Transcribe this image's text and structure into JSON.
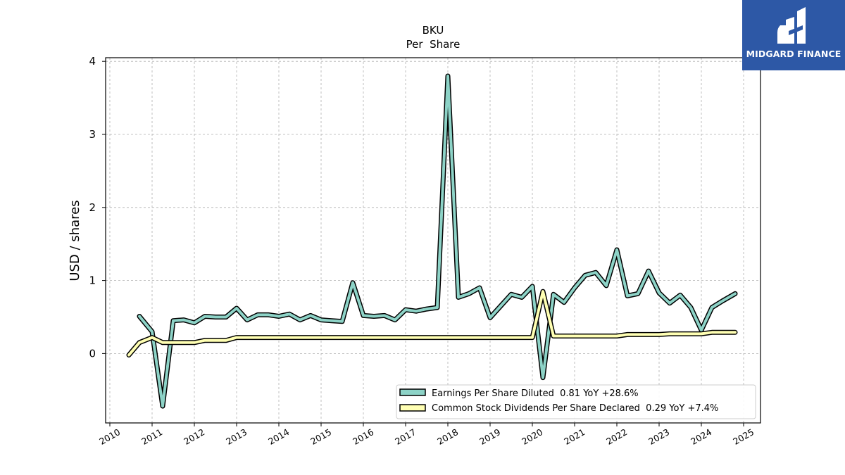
{
  "brand": {
    "name": "MIDGARD FINANCE",
    "bg": "#2d58a6"
  },
  "chart_data": {
    "type": "line",
    "title": "BKU",
    "subtitle": "Per  Share",
    "xlabel": "",
    "ylabel": "USD / shares",
    "xlim": [
      2009.9,
      2025.4
    ],
    "ylim": [
      -0.95,
      4.05
    ],
    "x_ticks": [
      "2010",
      "2011",
      "2012",
      "2013",
      "2014",
      "2015",
      "2016",
      "2017",
      "2018",
      "2019",
      "2020",
      "2021",
      "2022",
      "2023",
      "2024",
      "2025"
    ],
    "y_ticks": [
      "0",
      "1",
      "2",
      "3",
      "4"
    ],
    "grid": true,
    "legend_position": "lower-right",
    "series": [
      {
        "name": "Earnings Per Share Diluted  0.81 YoY +28.6%",
        "color": "#8dd3c7",
        "points": [
          [
            2010.7,
            0.51
          ],
          [
            2011.0,
            0.3
          ],
          [
            2011.25,
            -0.72
          ],
          [
            2011.5,
            0.45
          ],
          [
            2011.75,
            0.46
          ],
          [
            2012.0,
            0.42
          ],
          [
            2012.25,
            0.51
          ],
          [
            2012.5,
            0.5
          ],
          [
            2012.75,
            0.5
          ],
          [
            2013.0,
            0.62
          ],
          [
            2013.25,
            0.46
          ],
          [
            2013.5,
            0.53
          ],
          [
            2013.75,
            0.53
          ],
          [
            2014.0,
            0.51
          ],
          [
            2014.25,
            0.54
          ],
          [
            2014.5,
            0.46
          ],
          [
            2014.75,
            0.52
          ],
          [
            2015.0,
            0.46
          ],
          [
            2015.25,
            0.45
          ],
          [
            2015.5,
            0.44
          ],
          [
            2015.75,
            0.97
          ],
          [
            2016.0,
            0.52
          ],
          [
            2016.25,
            0.51
          ],
          [
            2016.5,
            0.52
          ],
          [
            2016.75,
            0.46
          ],
          [
            2017.0,
            0.6
          ],
          [
            2017.25,
            0.58
          ],
          [
            2017.5,
            0.61
          ],
          [
            2017.75,
            0.63
          ],
          [
            2018.0,
            3.8
          ],
          [
            2018.25,
            0.77
          ],
          [
            2018.5,
            0.82
          ],
          [
            2018.75,
            0.9
          ],
          [
            2019.0,
            0.49
          ],
          [
            2019.25,
            0.65
          ],
          [
            2019.5,
            0.81
          ],
          [
            2019.75,
            0.77
          ],
          [
            2020.0,
            0.92
          ],
          [
            2020.25,
            -0.33
          ],
          [
            2020.5,
            0.81
          ],
          [
            2020.75,
            0.7
          ],
          [
            2021.0,
            0.9
          ],
          [
            2021.25,
            1.07
          ],
          [
            2021.5,
            1.11
          ],
          [
            2021.75,
            0.93
          ],
          [
            2022.0,
            1.42
          ],
          [
            2022.25,
            0.79
          ],
          [
            2022.5,
            0.82
          ],
          [
            2022.75,
            1.13
          ],
          [
            2023.0,
            0.83
          ],
          [
            2023.25,
            0.69
          ],
          [
            2023.5,
            0.8
          ],
          [
            2023.75,
            0.63
          ],
          [
            2024.0,
            0.32
          ],
          [
            2024.25,
            0.63
          ],
          [
            2024.5,
            0.72
          ],
          [
            2024.8,
            0.82
          ]
        ]
      },
      {
        "name": "Common Stock Dividends Per Share Declared  0.29 YoY +7.4%",
        "color": "#ffffb3",
        "points": [
          [
            2010.45,
            -0.02
          ],
          [
            2010.7,
            0.15
          ],
          [
            2011.0,
            0.22
          ],
          [
            2011.25,
            0.15
          ],
          [
            2011.5,
            0.15
          ],
          [
            2011.75,
            0.15
          ],
          [
            2012.0,
            0.15
          ],
          [
            2012.25,
            0.18
          ],
          [
            2012.5,
            0.18
          ],
          [
            2012.75,
            0.18
          ],
          [
            2013.0,
            0.22
          ],
          [
            2013.25,
            0.22
          ],
          [
            2013.5,
            0.22
          ],
          [
            2013.75,
            0.22
          ],
          [
            2014.0,
            0.22
          ],
          [
            2014.25,
            0.22
          ],
          [
            2014.5,
            0.22
          ],
          [
            2014.75,
            0.22
          ],
          [
            2015.0,
            0.22
          ],
          [
            2015.25,
            0.22
          ],
          [
            2015.5,
            0.22
          ],
          [
            2015.75,
            0.22
          ],
          [
            2016.0,
            0.22
          ],
          [
            2016.25,
            0.22
          ],
          [
            2016.5,
            0.22
          ],
          [
            2016.75,
            0.22
          ],
          [
            2017.0,
            0.22
          ],
          [
            2017.25,
            0.22
          ],
          [
            2017.5,
            0.22
          ],
          [
            2017.75,
            0.22
          ],
          [
            2018.0,
            0.22
          ],
          [
            2018.25,
            0.22
          ],
          [
            2018.5,
            0.22
          ],
          [
            2018.75,
            0.22
          ],
          [
            2019.0,
            0.22
          ],
          [
            2019.25,
            0.22
          ],
          [
            2019.5,
            0.22
          ],
          [
            2019.75,
            0.22
          ],
          [
            2020.0,
            0.22
          ],
          [
            2020.25,
            0.85
          ],
          [
            2020.5,
            0.24
          ],
          [
            2020.75,
            0.24
          ],
          [
            2021.0,
            0.24
          ],
          [
            2021.25,
            0.24
          ],
          [
            2021.5,
            0.24
          ],
          [
            2021.75,
            0.24
          ],
          [
            2022.0,
            0.24
          ],
          [
            2022.25,
            0.26
          ],
          [
            2022.5,
            0.26
          ],
          [
            2022.75,
            0.26
          ],
          [
            2023.0,
            0.26
          ],
          [
            2023.25,
            0.27
          ],
          [
            2023.5,
            0.27
          ],
          [
            2023.75,
            0.27
          ],
          [
            2024.0,
            0.27
          ],
          [
            2024.25,
            0.29
          ],
          [
            2024.5,
            0.29
          ],
          [
            2024.8,
            0.29
          ]
        ]
      }
    ]
  }
}
